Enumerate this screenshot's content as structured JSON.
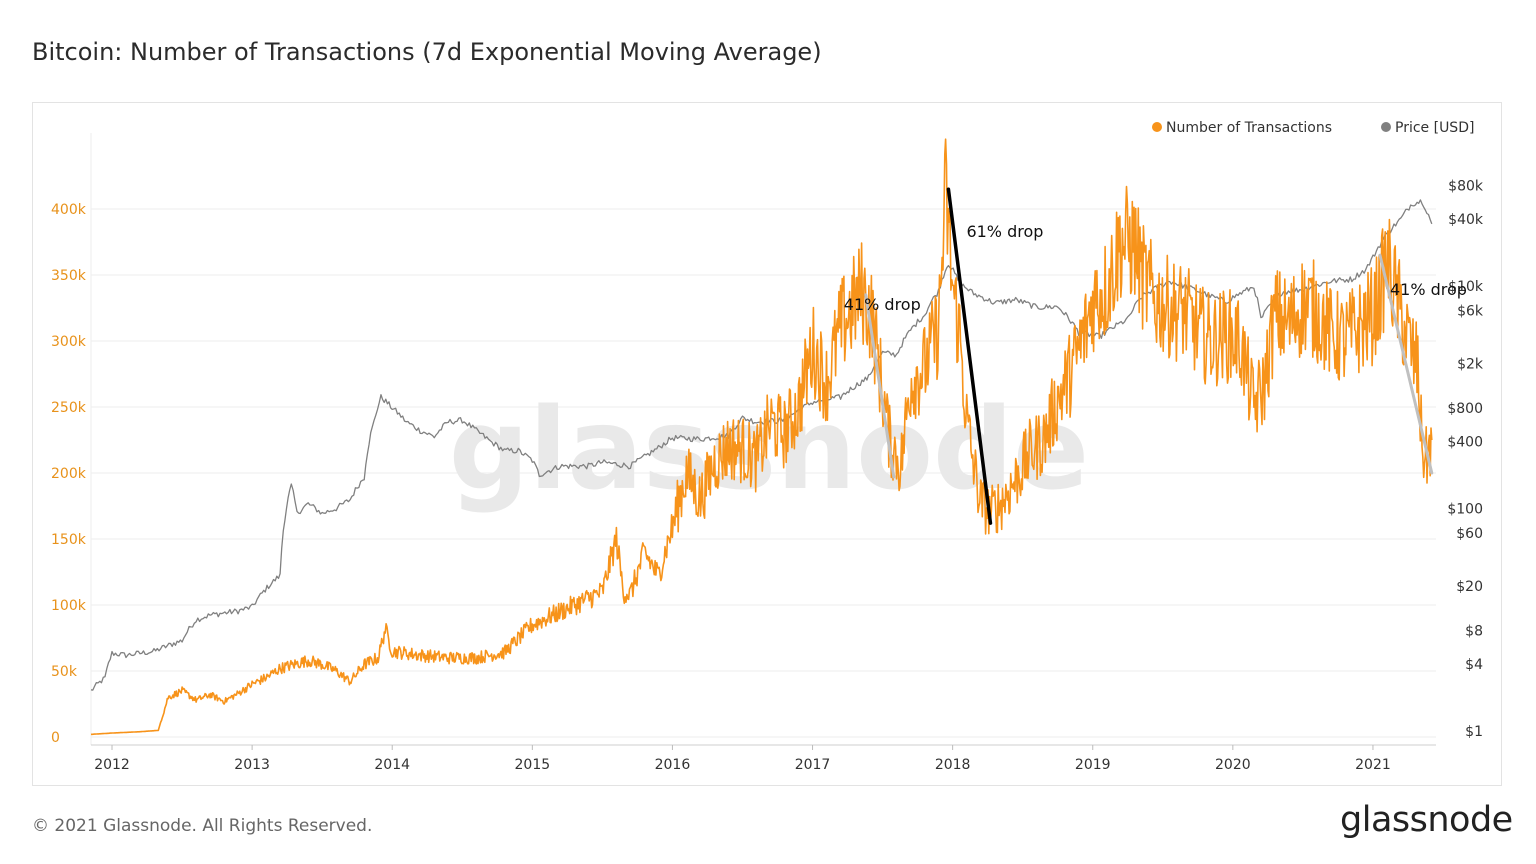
{
  "page": {
    "title": "Bitcoin: Number of Transactions (7d Exponential Moving Average)",
    "copyright": "© 2021 Glassnode. All Rights Reserved.",
    "brand": "glassnode",
    "watermark": "glassnode"
  },
  "chart_data": {
    "type": "line",
    "title": "Bitcoin: Number of Transactions (7d Exponential Moving Average)",
    "xlabel": "",
    "ylabel": "",
    "legend": [
      {
        "name": "Number of Transactions",
        "color": "#f7931a"
      },
      {
        "name": "Price [USD]",
        "color": "#808080"
      }
    ],
    "legend_position": "top-right",
    "x_range": [
      2011.85,
      2021.45
    ],
    "x_ticks": [
      "2012",
      "2013",
      "2014",
      "2015",
      "2016",
      "2017",
      "2018",
      "2019",
      "2020",
      "2021"
    ],
    "y_left": {
      "ticks": [
        0,
        50000,
        100000,
        150000,
        200000,
        250000,
        300000,
        350000,
        400000
      ],
      "tick_labels": [
        "0",
        "50k",
        "100k",
        "150k",
        "200k",
        "250k",
        "300k",
        "350k",
        "400k"
      ],
      "range": [
        0,
        440000
      ],
      "color": "#e8921b"
    },
    "y_right": {
      "scale": "log",
      "ticks": [
        1,
        4,
        8,
        20,
        60,
        100,
        400,
        800,
        2000,
        6000,
        10000,
        40000,
        80000
      ],
      "tick_labels": [
        "$1",
        "$4",
        "$8",
        "$20",
        "$60",
        "$100",
        "$400",
        "$800",
        "$2k",
        "$6k",
        "$10k",
        "$40k",
        "$80k"
      ]
    },
    "series": [
      {
        "name": "Number of Transactions",
        "axis": "left",
        "color": "#f7931a",
        "x": [
          2011.85,
          2012.0,
          2012.2,
          2012.33,
          2012.4,
          2012.5,
          2012.6,
          2012.7,
          2012.8,
          2012.9,
          2013.0,
          2013.1,
          2013.2,
          2013.3,
          2013.4,
          2013.5,
          2013.6,
          2013.7,
          2013.8,
          2013.9,
          2013.95,
          2014.0,
          2014.2,
          2014.4,
          2014.6,
          2014.8,
          2015.0,
          2015.2,
          2015.4,
          2015.5,
          2015.6,
          2015.65,
          2015.7,
          2015.8,
          2015.9,
          2016.0,
          2016.1,
          2016.2,
          2016.3,
          2016.4,
          2016.5,
          2016.6,
          2016.7,
          2016.8,
          2016.9,
          2017.0,
          2017.1,
          2017.2,
          2017.3,
          2017.35,
          2017.42,
          2017.55,
          2017.63,
          2017.7,
          2017.8,
          2017.9,
          2017.95,
          2018.0,
          2018.05,
          2018.1,
          2018.15,
          2018.2,
          2018.27,
          2018.35,
          2018.45,
          2018.55,
          2018.65,
          2018.75,
          2018.85,
          2018.95,
          2019.0,
          2019.1,
          2019.2,
          2019.3,
          2019.35,
          2019.45,
          2019.55,
          2019.65,
          2019.75,
          2019.85,
          2019.95,
          2020.05,
          2020.15,
          2020.22,
          2020.3,
          2020.4,
          2020.5,
          2020.6,
          2020.7,
          2020.8,
          2020.9,
          2021.0,
          2021.05,
          2021.1,
          2021.2,
          2021.28,
          2021.32,
          2021.35,
          2021.38,
          2021.42
        ],
        "values": [
          2000,
          3000,
          4000,
          5000,
          30000,
          35000,
          28000,
          32000,
          27000,
          33000,
          40000,
          45000,
          52000,
          55000,
          58000,
          55000,
          50000,
          42000,
          55000,
          60000,
          82000,
          65000,
          62000,
          60000,
          60000,
          64000,
          85000,
          95000,
          105000,
          110000,
          150000,
          110000,
          108000,
          140000,
          122000,
          160000,
          200000,
          180000,
          208000,
          220000,
          218000,
          210000,
          238000,
          230000,
          250000,
          295000,
          268000,
          310000,
          328000,
          338000,
          320000,
          225000,
          205000,
          270000,
          280000,
          310000,
          412000,
          340000,
          305000,
          240000,
          205000,
          178000,
          170000,
          178000,
          195000,
          215000,
          225000,
          255000,
          278000,
          308000,
          330000,
          340000,
          375000,
          372000,
          350000,
          330000,
          325000,
          322000,
          308000,
          300000,
          305000,
          300000,
          250000,
          265000,
          320000,
          312000,
          328000,
          322000,
          305000,
          300000,
          310000,
          320000,
          335000,
          360000,
          320000,
          290000,
          280000,
          220000,
          210000,
          225000
        ]
      },
      {
        "name": "Price [USD]",
        "axis": "right",
        "color": "#808080",
        "x": [
          2011.85,
          2011.95,
          2012.0,
          2012.1,
          2012.2,
          2012.3,
          2012.5,
          2012.6,
          2012.7,
          2012.9,
          2013.0,
          2013.2,
          2013.28,
          2013.32,
          2013.4,
          2013.5,
          2013.6,
          2013.7,
          2013.8,
          2013.87,
          2013.92,
          2014.0,
          2014.1,
          2014.2,
          2014.3,
          2014.4,
          2014.5,
          2014.6,
          2014.7,
          2014.8,
          2014.9,
          2015.0,
          2015.05,
          2015.2,
          2015.4,
          2015.5,
          2015.7,
          2015.8,
          2015.9,
          2016.0,
          2016.2,
          2016.4,
          2016.5,
          2016.6,
          2016.8,
          2017.0,
          2017.2,
          2017.4,
          2017.5,
          2017.6,
          2017.7,
          2017.8,
          2017.9,
          2017.97,
          2018.05,
          2018.15,
          2018.3,
          2018.45,
          2018.6,
          2018.75,
          2018.9,
          2018.95,
          2019.05,
          2019.25,
          2019.35,
          2019.45,
          2019.55,
          2019.7,
          2019.85,
          2019.95,
          2020.05,
          2020.15,
          2020.2,
          2020.35,
          2020.5,
          2020.7,
          2020.85,
          2020.95,
          2021.0,
          2021.1,
          2021.2,
          2021.28,
          2021.35,
          2021.42
        ],
        "values": [
          2.3,
          3,
          5,
          4.8,
          5,
          5.2,
          6.5,
          10,
          11,
          12,
          13,
          25,
          160,
          90,
          110,
          90,
          100,
          120,
          190,
          600,
          1000,
          800,
          600,
          500,
          440,
          600,
          620,
          500,
          400,
          330,
          330,
          270,
          200,
          240,
          240,
          260,
          240,
          290,
          350,
          430,
          420,
          450,
          650,
          600,
          620,
          900,
          1000,
          1500,
          2500,
          2400,
          4000,
          5500,
          9000,
          16000,
          10500,
          8500,
          7000,
          7500,
          6400,
          6500,
          3800,
          3700,
          3500,
          5000,
          8000,
          9500,
          11000,
          9500,
          8000,
          7200,
          8500,
          9800,
          5000,
          8800,
          9300,
          11000,
          11500,
          14000,
          18000,
          29000,
          40000,
          55000,
          58000,
          36000
        ]
      }
    ],
    "annotations": [
      {
        "text": "41% drop",
        "series": "Number of Transactions",
        "from": {
          "x": 2017.38,
          "y": 335000
        },
        "to": {
          "x": 2017.58,
          "y": 197000
        },
        "color": "#c0c0c0"
      },
      {
        "text": "61% drop",
        "series": "Number of Transactions",
        "from": {
          "x": 2017.97,
          "y": 415000
        },
        "to": {
          "x": 2018.27,
          "y": 162000
        },
        "color": "#000000"
      },
      {
        "text": "41% drop",
        "series": "Number of Transactions",
        "from": {
          "x": 2021.05,
          "y": 365000
        },
        "to": {
          "x": 2021.42,
          "y": 200000
        },
        "color": "#c0c0c0"
      }
    ]
  }
}
